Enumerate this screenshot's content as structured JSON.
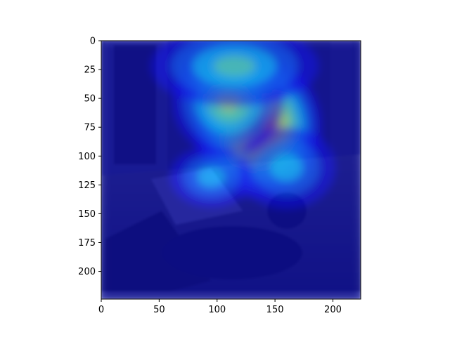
{
  "chart_data": {
    "type": "heatmap",
    "title": "",
    "xlabel": "",
    "ylabel": "",
    "xlim": [
      0,
      224
    ],
    "ylim": [
      224,
      0
    ],
    "x_ticks": [
      0,
      50,
      100,
      150,
      200
    ],
    "y_ticks": [
      0,
      25,
      50,
      75,
      100,
      125,
      150,
      175,
      200
    ],
    "colormap": "jet",
    "colormap_colors": [
      "#00007f",
      "#0000ff",
      "#007fff",
      "#00ffff",
      "#7fff7f",
      "#ffff00",
      "#ff7f00",
      "#ff0000",
      "#7f0000"
    ],
    "hotspots": [
      {
        "x": 135,
        "y": 75,
        "sx": 34,
        "sy": 38,
        "intensity": 1.0
      },
      {
        "x": 110,
        "y": 52,
        "sx": 30,
        "sy": 30,
        "intensity": 0.6
      },
      {
        "x": 115,
        "y": 22,
        "sx": 45,
        "sy": 22,
        "intensity": 0.45
      },
      {
        "x": 160,
        "y": 110,
        "sx": 26,
        "sy": 22,
        "intensity": 0.35
      },
      {
        "x": 95,
        "y": 118,
        "sx": 22,
        "sy": 16,
        "intensity": 0.35
      }
    ],
    "grid": false,
    "legend": "none"
  }
}
